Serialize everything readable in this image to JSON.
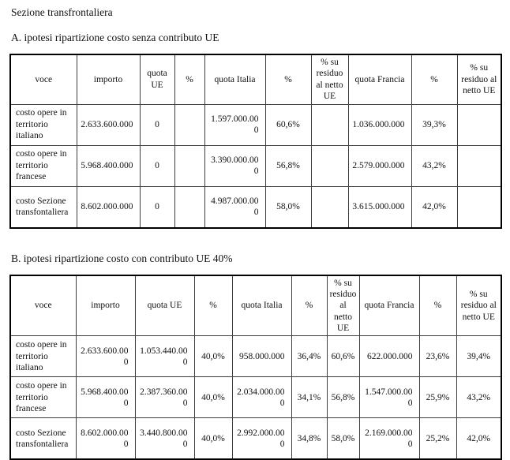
{
  "page": {
    "title": "Sezione transfrontaliera"
  },
  "colors": {
    "background": "#ffffff",
    "text": "#111111",
    "table_border": "#000000"
  },
  "section_a": {
    "heading": "A. ipotesi ripartizione costo senza contributo UE",
    "table": {
      "columns": [
        "voce",
        "importo",
        "quota UE",
        "%",
        "quota Italia",
        "%",
        "% su residuo al netto UE",
        "quota Francia",
        "%",
        "% su residuo al netto UE"
      ],
      "rows": [
        [
          "costo opere in territorio italiano",
          "2.633.600.000",
          "0",
          "",
          "1.597.000.000",
          "60,6%",
          "",
          "1.036.000.000",
          "39,3%",
          ""
        ],
        [
          "costo opere in territorio francese",
          "5.968.400.000",
          "0",
          "",
          "3.390.000.000",
          "56,8%",
          "",
          "2.579.000.000",
          "43,2%",
          ""
        ],
        [
          "costo Sezione transfontaliera",
          "8.602.000.000",
          "0",
          "",
          "4.987.000.000",
          "58,0%",
          "",
          "3.615.000.000",
          "42,0%",
          ""
        ]
      ]
    }
  },
  "section_b": {
    "heading": "B. ipotesi ripartizione costo con contributo UE 40%",
    "table": {
      "columns": [
        "voce",
        "importo",
        "quota UE",
        "%",
        "quota Italia",
        "%",
        "% su residuo al netto UE",
        "quota Francia",
        "%",
        "% su residuo al netto UE"
      ],
      "rows": [
        [
          "costo opere in territorio italiano",
          "2.633.600.000",
          "1.053.440.000",
          "40,0%",
          "958.000.000",
          "36,4%",
          "60,6%",
          "622.000.000",
          "23,6%",
          "39,4%"
        ],
        [
          "costo opere in territorio francese",
          "5.968.400.000",
          "2.387.360.000",
          "40,0%",
          "2.034.000.000",
          "34,1%",
          "56,8%",
          "1.547.000.000",
          "25,9%",
          "43,2%"
        ],
        [
          "costo Sezione transfontaliera",
          "8.602.000.000",
          "3.440.800.000",
          "40,0%",
          "2.992.000.000",
          "34,8%",
          "58,0%",
          "2.169.000.000",
          "25,2%",
          "42,0%"
        ]
      ]
    }
  }
}
